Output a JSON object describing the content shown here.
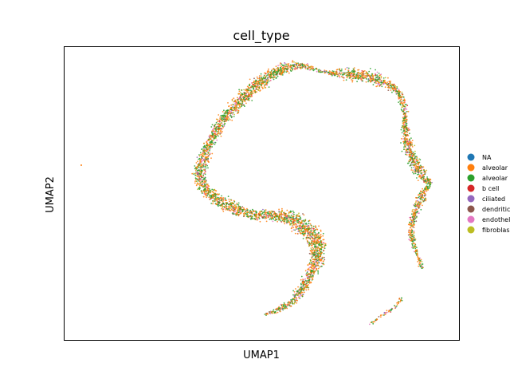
{
  "chart_data": {
    "type": "scatter",
    "title": "cell_type",
    "xlabel": "UMAP1",
    "ylabel": "UMAP2",
    "xticks": false,
    "yticks": false,
    "grid": false,
    "legend_placement": "right-outside",
    "series": [
      {
        "name": "NA",
        "color": "#1f77b4"
      },
      {
        "name": "alveolar",
        "color": "#ff7f0e"
      },
      {
        "name": "alveolar",
        "color": "#2ca02c"
      },
      {
        "name": "b cell",
        "color": "#d62728"
      },
      {
        "name": "ciliated",
        "color": "#9467bd"
      },
      {
        "name": "dendritic",
        "color": "#8c564b"
      },
      {
        "name": "endothel",
        "color": "#e377c2"
      },
      {
        "name": "fibroblas",
        "color": "#bcbd22"
      }
    ]
  }
}
